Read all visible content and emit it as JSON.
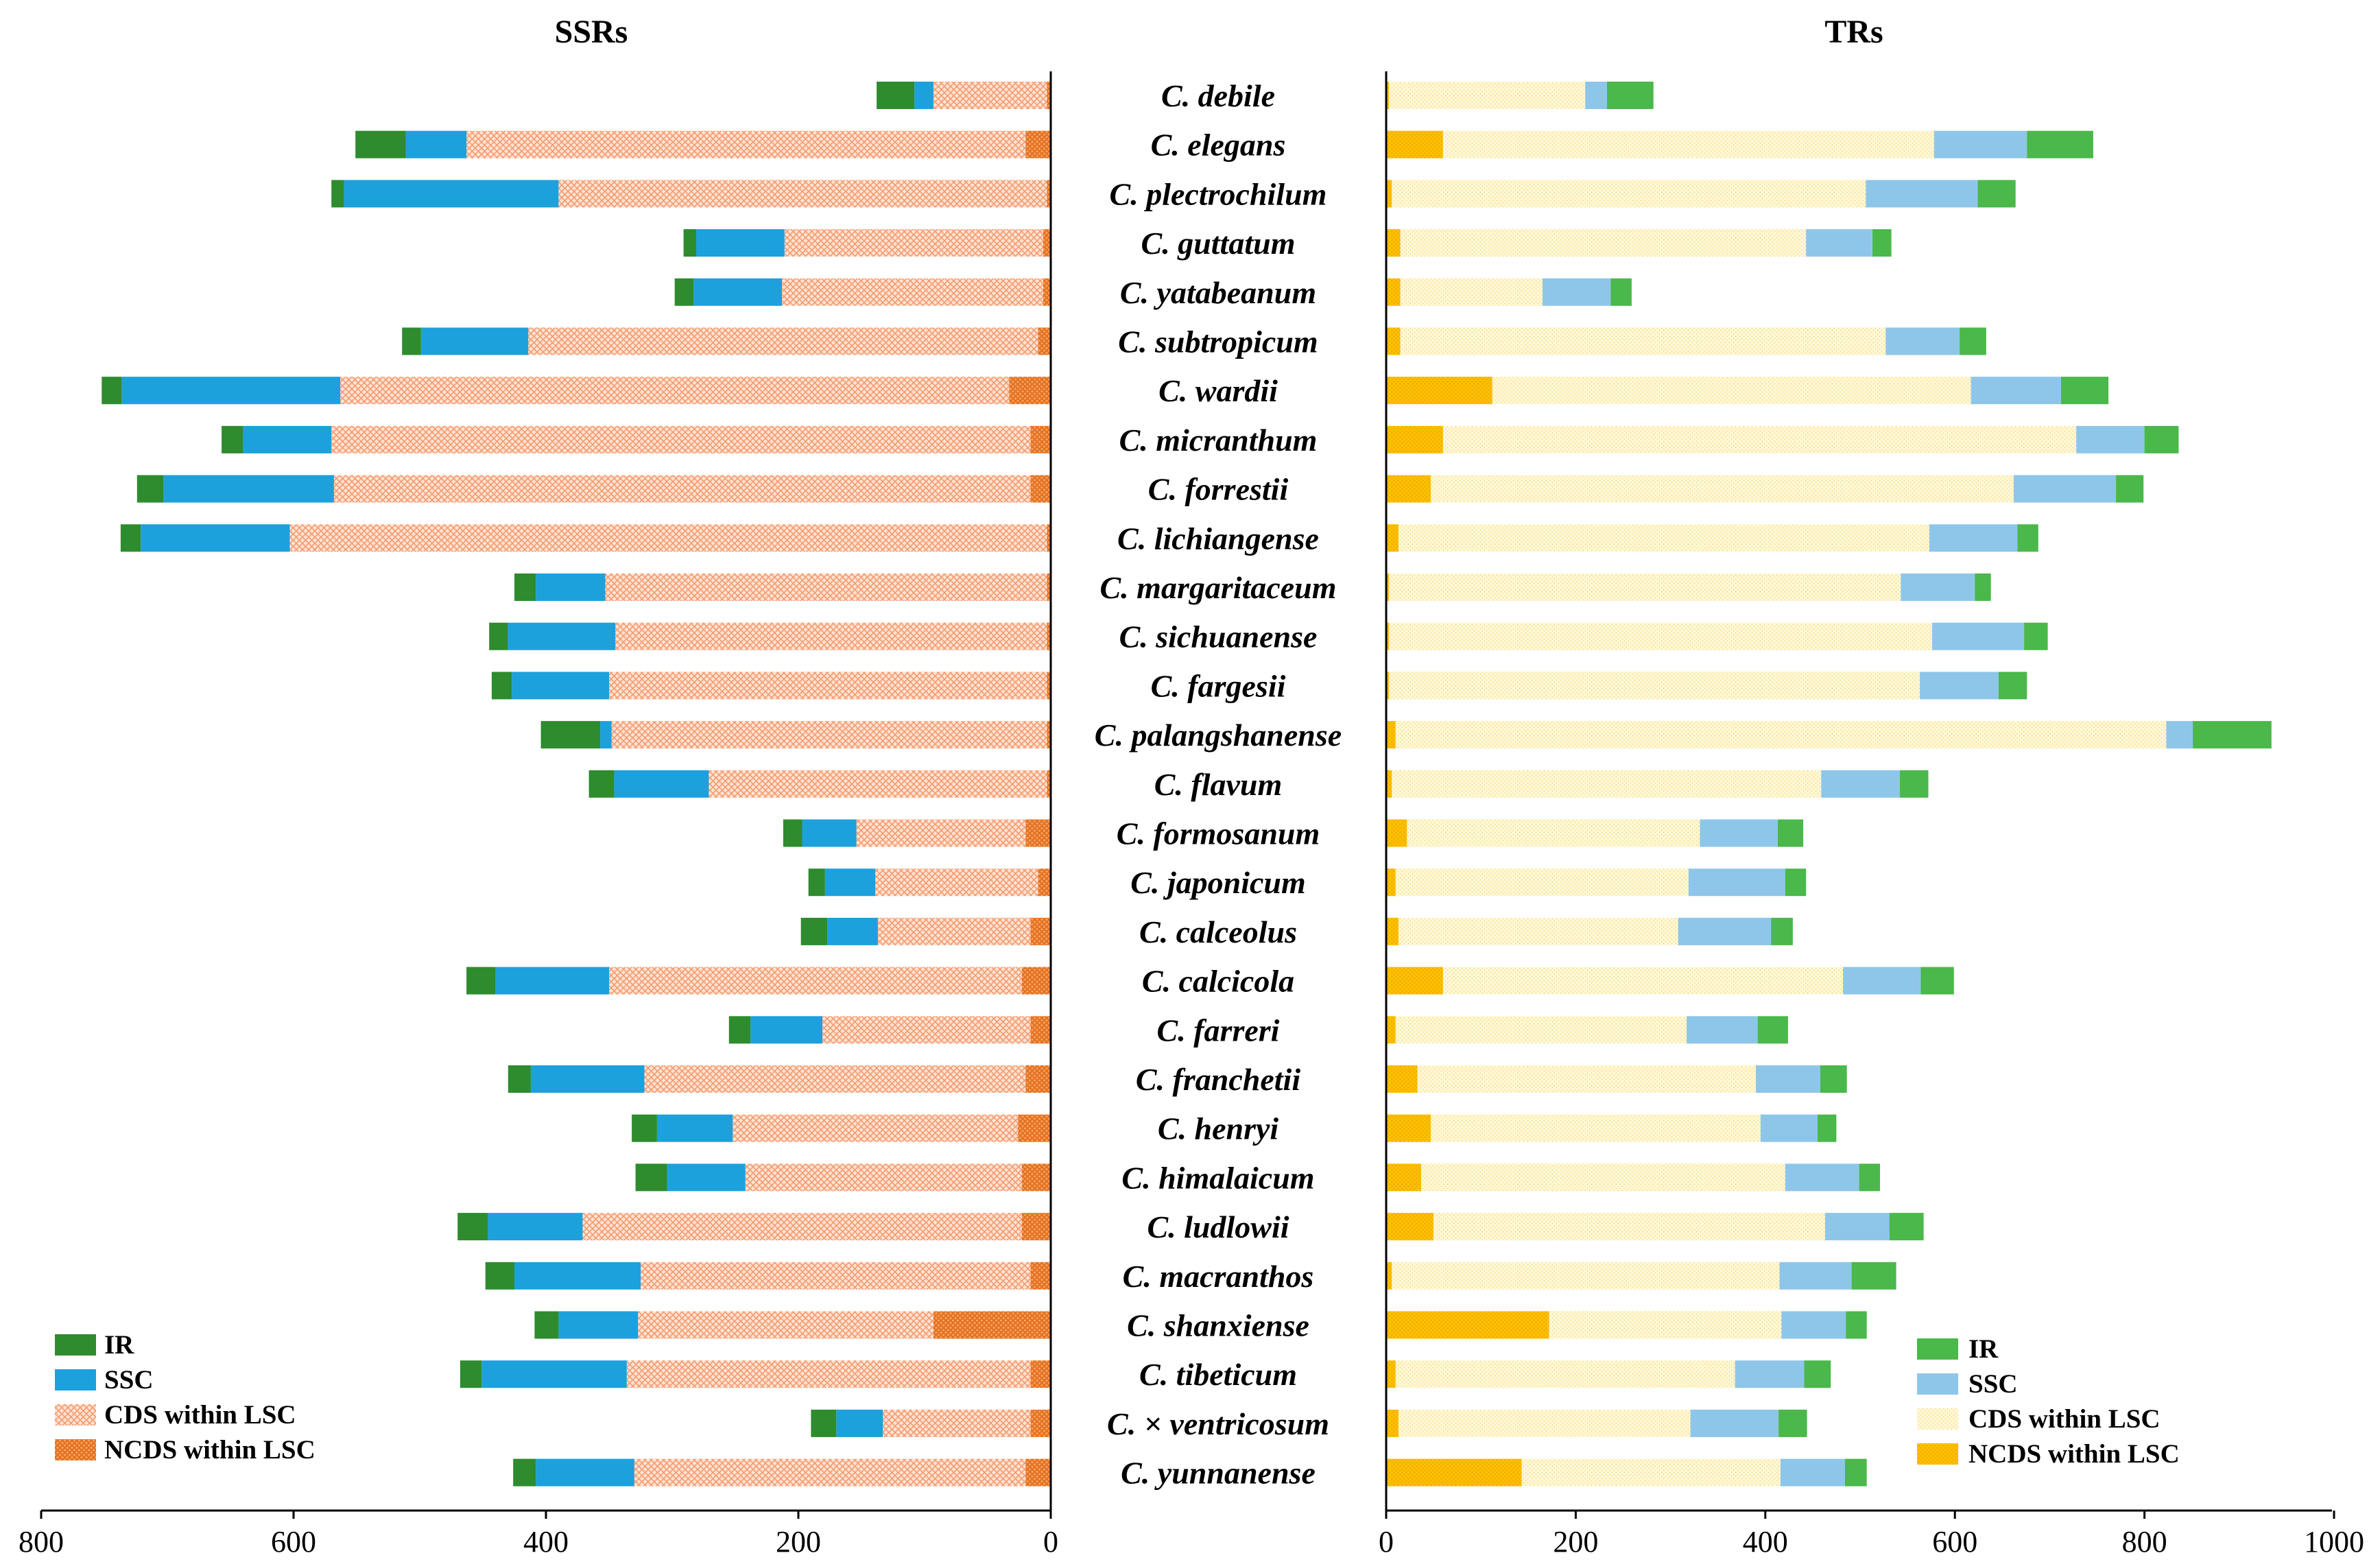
{
  "chart_data": [
    {
      "panel": "left",
      "type": "bar",
      "orientation": "horizontal-stacked",
      "title": "SSRs",
      "x_direction": "reversed",
      "xlim": [
        0,
        800
      ],
      "xticks": [
        "800",
        "600",
        "400",
        "200",
        "0"
      ],
      "categories": [
        "C. debile",
        "C. elegans",
        "C. plectrochilum",
        "C. guttatum",
        "C. yatabeanum",
        "C. subtropicum",
        "C. wardii",
        "C. micranthum",
        "C. forrestii",
        "C. lichiangense",
        "C. margaritaceum",
        "C. sichuanense",
        "C. fargesii",
        "C. palangshanense",
        "C. flavum",
        "C. formosanum",
        "C. japonicum",
        "C. calceolus",
        "C. calcicola",
        "C. farreri",
        "C. franchetii",
        "C. henryi",
        "C. himalaicum",
        "C. ludlowii",
        "C. macranthos",
        "C. shanxiense",
        "C. tibeticum",
        "C. × ventricosum",
        "C. yunnanense"
      ],
      "stack_order": [
        "NCDS within LSC",
        "CDS within LSC",
        "SSC",
        "IR"
      ],
      "series": [
        {
          "name": "NCDS within LSC",
          "color": "#f4903f",
          "pattern": "dense",
          "values": [
            3,
            20,
            3,
            6,
            6,
            10,
            33,
            16,
            16,
            3,
            3,
            3,
            3,
            3,
            3,
            20,
            10,
            16,
            23,
            16,
            20,
            26,
            23,
            23,
            16,
            93,
            16,
            16,
            20
          ]
        },
        {
          "name": "CDS within LSC",
          "color": "#f9b495",
          "pattern": "sparse",
          "values": [
            90,
            443,
            387,
            205,
            207,
            404,
            530,
            554,
            552,
            600,
            350,
            342,
            347,
            345,
            268,
            134,
            129,
            121,
            327,
            165,
            302,
            226,
            219,
            348,
            309,
            234,
            320,
            117,
            310
          ]
        },
        {
          "name": "SSC",
          "color": "#1ca1dc",
          "values": [
            15,
            48,
            170,
            70,
            70,
            85,
            173,
            70,
            135,
            118,
            55,
            85,
            77,
            9,
            75,
            43,
            40,
            40,
            90,
            57,
            90,
            60,
            62,
            75,
            100,
            63,
            115,
            37,
            78
          ]
        },
        {
          "name": "IR",
          "color": "#2e8b2e",
          "values": [
            30,
            40,
            10,
            10,
            15,
            15,
            16,
            17,
            21,
            16,
            17,
            15,
            16,
            47,
            20,
            15,
            13,
            21,
            23,
            17,
            18,
            20,
            25,
            24,
            23,
            19,
            17,
            20,
            18
          ]
        }
      ],
      "legend": {
        "position": "bottom-left",
        "entries": [
          "IR",
          "SSC",
          "CDS within LSC",
          "NCDS within LSC"
        ]
      }
    },
    {
      "panel": "right",
      "type": "bar",
      "orientation": "horizontal-stacked",
      "title": "TRs",
      "x_direction": "normal",
      "xlim": [
        0,
        1000
      ],
      "xticks": [
        "0",
        "200",
        "400",
        "600",
        "800",
        "1000"
      ],
      "categories": [
        "C. debile",
        "C. elegans",
        "C. plectrochilum",
        "C. guttatum",
        "C. yatabeanum",
        "C. subtropicum",
        "C. wardii",
        "C. micranthum",
        "C. forrestii",
        "C. lichiangense",
        "C. margaritaceum",
        "C. sichuanense",
        "C. fargesii",
        "C. palangshanense",
        "C. flavum",
        "C. formosanum",
        "C. japonicum",
        "C. calceolus",
        "C. calcicola",
        "C. farreri",
        "C. franchetii",
        "C. henryi",
        "C. himalaicum",
        "C. ludlowii",
        "C. macranthos",
        "C. shanxiense",
        "C. tibeticum",
        "C. × ventricosum",
        "C. yunnanense"
      ],
      "stack_order": [
        "NCDS within LSC",
        "CDS within LSC",
        "SSC",
        "IR"
      ],
      "series": [
        {
          "name": "NCDS within LSC",
          "color": "#ffc000",
          "pattern": "dense",
          "values": [
            3,
            60,
            6,
            15,
            15,
            15,
            112,
            60,
            47,
            13,
            3,
            3,
            3,
            10,
            6,
            22,
            10,
            13,
            60,
            10,
            33,
            47,
            37,
            50,
            6,
            172,
            10,
            13,
            143
          ]
        },
        {
          "name": "CDS within LSC",
          "color": "#fff2b3",
          "pattern": "sparse",
          "values": [
            207,
            518,
            500,
            428,
            150,
            512,
            505,
            668,
            615,
            560,
            540,
            573,
            560,
            813,
            453,
            309,
            309,
            295,
            422,
            307,
            357,
            348,
            384,
            413,
            409,
            245,
            358,
            308,
            273
          ]
        },
        {
          "name": "SSC",
          "color": "#8ec6ea",
          "values": [
            23,
            98,
            118,
            70,
            72,
            78,
            95,
            72,
            108,
            93,
            78,
            97,
            83,
            28,
            83,
            82,
            102,
            98,
            82,
            75,
            68,
            60,
            78,
            68,
            76,
            68,
            73,
            93,
            68
          ]
        },
        {
          "name": "IR",
          "color": "#4ab84a",
          "values": [
            49,
            70,
            40,
            20,
            22,
            28,
            50,
            36,
            29,
            22,
            17,
            25,
            30,
            83,
            30,
            27,
            22,
            23,
            35,
            32,
            28,
            20,
            22,
            36,
            47,
            22,
            28,
            30,
            23
          ]
        }
      ],
      "legend": {
        "position": "bottom-right",
        "entries": [
          "IR",
          "SSC",
          "CDS within LSC",
          "NCDS within LSC"
        ]
      }
    }
  ]
}
